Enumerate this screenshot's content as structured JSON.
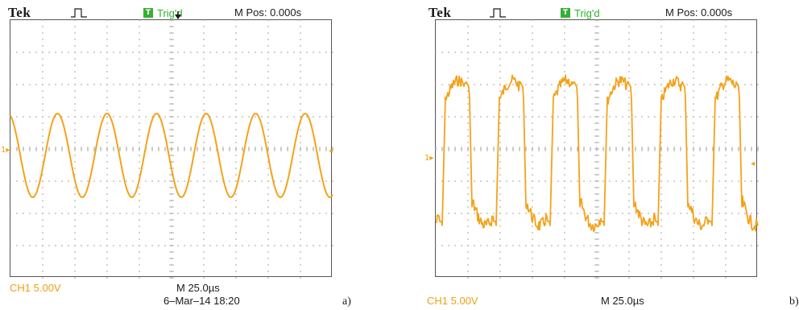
{
  "panels": [
    {
      "brand": "Tek",
      "trigger_status": "Trig'd",
      "trigger_icon_glyph": "T",
      "m_pos": "M Pos: 0.000s",
      "ch1_scale": "CH1  5.00V",
      "timebase": "M 25.0µs",
      "datetime": "6–Mar–14 18:20",
      "panel_label": "a)",
      "ch1_marker": "1▸",
      "waveform": "sine",
      "icons": [
        "pulse-icon",
        "trigger-icon",
        "trigger-position-arrow-icon",
        "ch1-ground-marker-icon",
        "trigger-level-marker-icon"
      ]
    },
    {
      "brand": "Tek",
      "trigger_status": "Trig'd",
      "trigger_icon_glyph": "T",
      "m_pos": "M Pos: 0.000s",
      "ch1_scale": "CH1  5.00V",
      "timebase": "M 25.0µs",
      "datetime": "",
      "panel_label": "b)",
      "ch1_marker": "1▸",
      "waveform": "distorted-square",
      "icons": [
        "pulse-icon",
        "trigger-icon",
        "trigger-position-arrow-icon",
        "ch1-ground-marker-icon",
        "trigger-level-marker-icon"
      ]
    }
  ],
  "colors": {
    "trace": "#f5a21b",
    "trig_green": "#35b035",
    "grid_dot": "#9a9a9a",
    "text": "#1a1a1a"
  },
  "grid": {
    "horizontal_divisions": 10,
    "vertical_divisions": 8
  }
}
